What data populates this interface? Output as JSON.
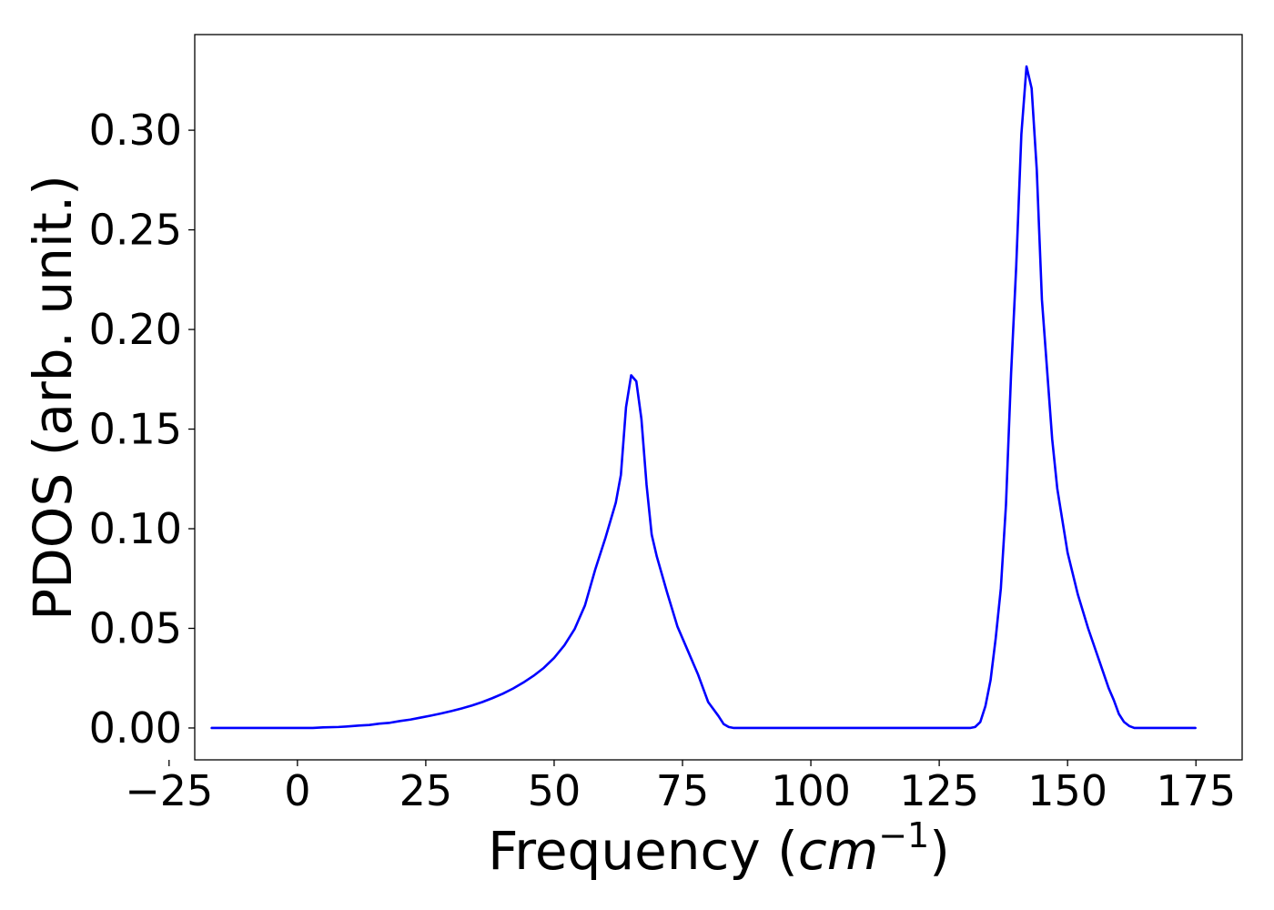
{
  "chart_data": {
    "type": "line",
    "title": "",
    "xlabel": {
      "text": "Frequency (",
      "unit_base": "cm",
      "unit_exponent": "−1",
      "close": ")"
    },
    "ylabel": "PDOS (arb. unit.)",
    "xlim": [
      -20,
      184
    ],
    "ylim": [
      -0.016,
      0.348
    ],
    "xticks": [
      {
        "value": -25,
        "label": "−25"
      },
      {
        "value": 0,
        "label": "0"
      },
      {
        "value": 25,
        "label": "25"
      },
      {
        "value": 50,
        "label": "50"
      },
      {
        "value": 75,
        "label": "75"
      },
      {
        "value": 100,
        "label": "100"
      },
      {
        "value": 125,
        "label": "125"
      },
      {
        "value": 150,
        "label": "150"
      },
      {
        "value": 175,
        "label": "175"
      }
    ],
    "yticks": [
      {
        "value": 0.0,
        "label": "0.00"
      },
      {
        "value": 0.05,
        "label": "0.05"
      },
      {
        "value": 0.1,
        "label": "0.10"
      },
      {
        "value": 0.15,
        "label": "0.15"
      },
      {
        "value": 0.2,
        "label": "0.20"
      },
      {
        "value": 0.25,
        "label": "0.25"
      },
      {
        "value": 0.3,
        "label": "0.30"
      }
    ],
    "grid": false,
    "legend": "none",
    "series": [
      {
        "color": "#0000ff",
        "x": [
          -16.8,
          0,
          3,
          5,
          8,
          10,
          12,
          14,
          16,
          18,
          20,
          22,
          24,
          26,
          28,
          30,
          32,
          34,
          36,
          38,
          40,
          42,
          44,
          46,
          48,
          50,
          52,
          54,
          56,
          58,
          60,
          62,
          63,
          64,
          65,
          66,
          67,
          68,
          69,
          70,
          72,
          74,
          76,
          78,
          80,
          82,
          83,
          84,
          85,
          86,
          88,
          100,
          120,
          131,
          132,
          133,
          134,
          135,
          136,
          137,
          138,
          139,
          140,
          141,
          142,
          143,
          144,
          145,
          146,
          147,
          148,
          150,
          152,
          154,
          156,
          158,
          159,
          160,
          161,
          162,
          163,
          165,
          175
        ],
        "y": [
          0,
          0,
          0,
          0.0003,
          0.0005,
          0.0008,
          0.0012,
          0.0015,
          0.0022,
          0.0026,
          0.0035,
          0.0042,
          0.0052,
          0.0062,
          0.0073,
          0.0085,
          0.0098,
          0.0113,
          0.013,
          0.015,
          0.0172,
          0.0198,
          0.0228,
          0.0262,
          0.0302,
          0.0352,
          0.0415,
          0.0497,
          0.0615,
          0.0795,
          0.0955,
          0.113,
          0.127,
          0.161,
          0.177,
          0.174,
          0.155,
          0.122,
          0.097,
          0.086,
          0.068,
          0.051,
          0.039,
          0.027,
          0.013,
          0.006,
          0.002,
          0.0005,
          0,
          0,
          0,
          0,
          0,
          0,
          0.0005,
          0.003,
          0.011,
          0.024,
          0.045,
          0.07,
          0.112,
          0.178,
          0.232,
          0.298,
          0.332,
          0.321,
          0.28,
          0.215,
          0.18,
          0.145,
          0.12,
          0.088,
          0.067,
          0.05,
          0.035,
          0.02,
          0.014,
          0.007,
          0.003,
          0.001,
          0,
          0,
          0
        ]
      }
    ]
  }
}
